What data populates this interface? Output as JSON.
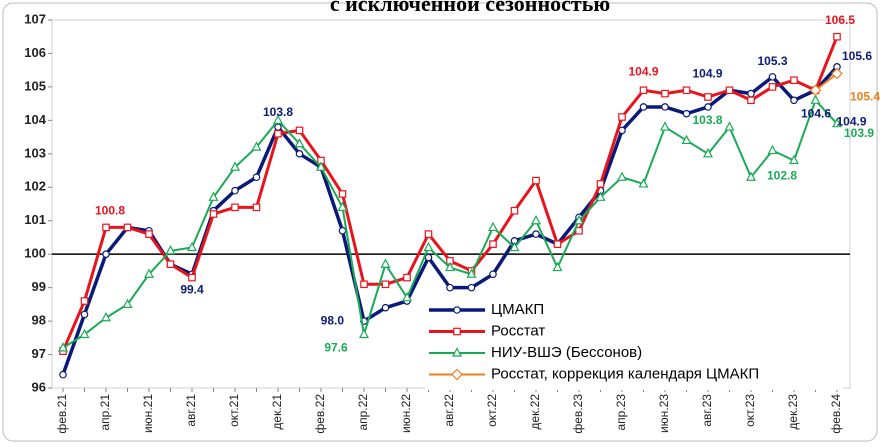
{
  "chart_data": {
    "type": "line",
    "title": "с исключенной сезонностью",
    "categories": [
      "фев.21",
      null,
      "апр.21",
      null,
      "июн.21",
      null,
      "авг.21",
      null,
      "окт.21",
      null,
      "дек.21",
      null,
      "фев.22",
      null,
      "апр.22",
      null,
      "июн.22",
      null,
      "авг.22",
      null,
      "окт.22",
      null,
      "дек.22",
      null,
      "фев.23",
      null,
      "апр.23",
      null,
      "июн.23",
      null,
      "авг.23",
      null,
      "окт.23",
      null,
      "дек.23",
      null,
      "фев.24"
    ],
    "series": [
      {
        "name": "ЦМАКП",
        "color": "#0a1a78",
        "marker": "circle",
        "values": [
          96.4,
          98.2,
          100.0,
          100.8,
          100.7,
          99.7,
          99.4,
          101.3,
          101.9,
          102.3,
          103.8,
          103.0,
          102.6,
          100.7,
          98.0,
          98.4,
          98.6,
          99.9,
          99.0,
          99.0,
          99.4,
          100.4,
          100.6,
          100.3,
          101.1,
          101.9,
          103.7,
          104.4,
          104.4,
          104.2,
          104.4,
          104.9,
          104.8,
          105.3,
          104.6,
          104.9,
          105.6
        ],
        "value_labels": [
          null,
          null,
          null,
          null,
          null,
          null,
          "99.4",
          null,
          null,
          null,
          "103.8",
          null,
          null,
          null,
          "98.0",
          null,
          null,
          null,
          null,
          null,
          null,
          null,
          null,
          null,
          null,
          null,
          null,
          null,
          null,
          null,
          null,
          "104.9",
          null,
          "105.3",
          "104.6",
          "104.9",
          "105.6"
        ]
      },
      {
        "name": "Росстат",
        "color": "#e8141c",
        "marker": "square",
        "values": [
          97.1,
          98.6,
          100.8,
          100.8,
          100.6,
          99.7,
          99.3,
          101.2,
          101.4,
          101.4,
          103.6,
          103.7,
          102.8,
          101.8,
          99.1,
          99.1,
          99.3,
          100.6,
          99.8,
          99.5,
          100.3,
          101.3,
          102.2,
          100.3,
          100.7,
          102.1,
          104.1,
          104.9,
          104.8,
          104.9,
          104.7,
          104.9,
          104.6,
          105.0,
          105.2,
          104.9,
          106.5
        ],
        "value_labels": [
          null,
          null,
          "100.8",
          null,
          null,
          null,
          null,
          null,
          null,
          null,
          null,
          null,
          null,
          null,
          null,
          null,
          null,
          null,
          null,
          null,
          null,
          null,
          null,
          null,
          null,
          null,
          null,
          "104.9",
          null,
          null,
          null,
          null,
          null,
          null,
          null,
          null,
          "106.5"
        ]
      },
      {
        "name": "НИУ-ВШЭ (Бессонов)",
        "color": "#1aaa55",
        "marker": "triangle",
        "values": [
          97.2,
          97.6,
          98.1,
          98.5,
          99.4,
          100.1,
          100.2,
          101.7,
          102.6,
          103.2,
          104.0,
          103.3,
          102.6,
          101.4,
          97.6,
          99.7,
          98.7,
          100.2,
          99.6,
          99.4,
          100.8,
          100.2,
          101.0,
          99.6,
          101.0,
          101.7,
          102.3,
          102.1,
          103.8,
          103.4,
          103.0,
          103.8,
          102.3,
          103.1,
          102.8,
          104.6,
          103.9
        ],
        "value_labels": [
          null,
          null,
          null,
          null,
          null,
          null,
          null,
          null,
          null,
          null,
          null,
          null,
          null,
          null,
          "97.6",
          null,
          null,
          null,
          null,
          null,
          null,
          null,
          null,
          null,
          null,
          null,
          null,
          null,
          null,
          null,
          null,
          "103.8",
          null,
          null,
          "102.8",
          null,
          "103.9"
        ]
      },
      {
        "name": "Росстат, коррекция календаря ЦМАКП",
        "color": "#f07d1a",
        "marker": "diamond",
        "values": [
          null,
          null,
          null,
          null,
          null,
          null,
          null,
          null,
          null,
          null,
          null,
          null,
          null,
          null,
          null,
          null,
          null,
          null,
          null,
          null,
          null,
          null,
          null,
          null,
          null,
          null,
          null,
          null,
          null,
          null,
          null,
          null,
          null,
          null,
          null,
          104.9,
          105.4
        ],
        "value_labels": [
          null,
          null,
          null,
          null,
          null,
          null,
          null,
          null,
          null,
          null,
          null,
          null,
          null,
          null,
          null,
          null,
          null,
          null,
          null,
          null,
          null,
          null,
          null,
          null,
          null,
          null,
          null,
          null,
          null,
          null,
          null,
          null,
          null,
          null,
          null,
          null,
          "105.4"
        ]
      }
    ],
    "ylim": [
      96,
      107
    ],
    "yticks": [
      96,
      97,
      98,
      99,
      100,
      101,
      102,
      103,
      104,
      105,
      106,
      107
    ],
    "reference_line": 100,
    "grid": false,
    "legend_position": "lower right"
  }
}
